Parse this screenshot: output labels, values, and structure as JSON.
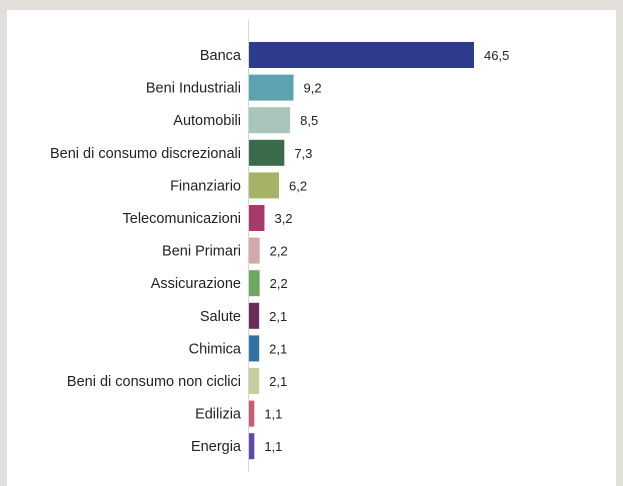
{
  "chart_data": {
    "type": "bar",
    "orientation": "horizontal",
    "categories": [
      "Banca",
      "Beni Industriali",
      "Automobili",
      "Beni di consumo discrezionali",
      "Finanziario",
      "Telecomunicazioni",
      "Beni Primari",
      "Assicurazione",
      "Salute",
      "Chimica",
      "Beni di consumo non ciclici",
      "Edilizia",
      "Energia"
    ],
    "values": [
      46.5,
      9.2,
      8.5,
      7.3,
      6.2,
      3.2,
      2.2,
      2.2,
      2.1,
      2.1,
      2.1,
      1.1,
      1.1
    ],
    "value_labels": [
      "46,5",
      "9,2",
      "8,5",
      "7,3",
      "6,2",
      "3,2",
      "2,2",
      "2,2",
      "2,1",
      "2,1",
      "2,1",
      "1,1",
      "1,1"
    ],
    "colors": [
      "#2e3a8c",
      "#5ba3b0",
      "#a9c4b8",
      "#3c6b4c",
      "#a4b366",
      "#a83a6b",
      "#d2a8ac",
      "#6ba860",
      "#6b2d5c",
      "#2f72a3",
      "#c7cc9e",
      "#c95c74",
      "#5e4aa8"
    ],
    "xlim": [
      0,
      50
    ],
    "title": "",
    "xlabel": "",
    "ylabel": "",
    "grid": false,
    "legend": "none"
  }
}
